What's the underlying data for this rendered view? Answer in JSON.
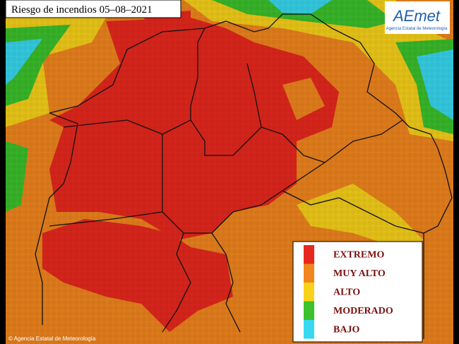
{
  "header": {
    "title": "Riesgo de incendios 05–08–2021"
  },
  "logo": {
    "name": "AEmet",
    "subtitle": "Agencia Estatal de Meteorología"
  },
  "legend": [
    {
      "label": "EXTREMO",
      "color": "#e8281e"
    },
    {
      "label": "MUY ALTO",
      "color": "#f2861e"
    },
    {
      "label": "ALTO",
      "color": "#f8d21a"
    },
    {
      "label": "MODERADO",
      "color": "#3cc22c"
    },
    {
      "label": "BAJO",
      "color": "#38d8f0"
    }
  ],
  "credit": "© Agencia Estatal de Meteorología"
}
